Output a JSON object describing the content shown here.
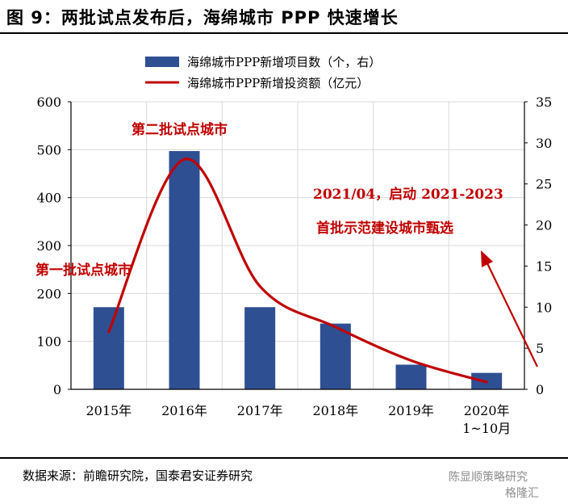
{
  "figure": {
    "title": "图 9：两批试点发布后，海绵城市 PPP 快速增长",
    "source": "数据来源：前瞻研究院，国泰君安证券研究",
    "watermark_account": "陈显顺策略研究",
    "watermark_site": "格隆汇"
  },
  "chart_data": {
    "type": "bar",
    "categories": [
      "2015年",
      "2016年",
      "2017年",
      "2018年",
      "2019年",
      "2020年\n1~10月"
    ],
    "series": [
      {
        "name": "海绵城市PPP新增项目数（个，右）",
        "type": "bar",
        "axis": "right",
        "color": "#2f4f93",
        "values": [
          10,
          29,
          10,
          8,
          3,
          2
        ]
      },
      {
        "name": "海绵城市PPP新增投资额（亿元）",
        "type": "line",
        "axis": "left",
        "color": "#c00000",
        "values": [
          120,
          480,
          215,
          130,
          60,
          15
        ]
      }
    ],
    "yleft": {
      "lim": [
        0,
        600
      ],
      "ticks": [
        0,
        100,
        200,
        300,
        400,
        500,
        600
      ]
    },
    "yright": {
      "lim": [
        0,
        35
      ],
      "ticks": [
        0,
        5,
        10,
        15,
        20,
        25,
        30,
        35
      ]
    },
    "grid": true,
    "legend": "top",
    "annotations": [
      {
        "text": "第二批试点城市"
      },
      {
        "text": "第一批试点城市"
      },
      {
        "text": "2021/04，启动 2021-2023"
      },
      {
        "text": "首批示范建设城市甄选"
      }
    ]
  }
}
